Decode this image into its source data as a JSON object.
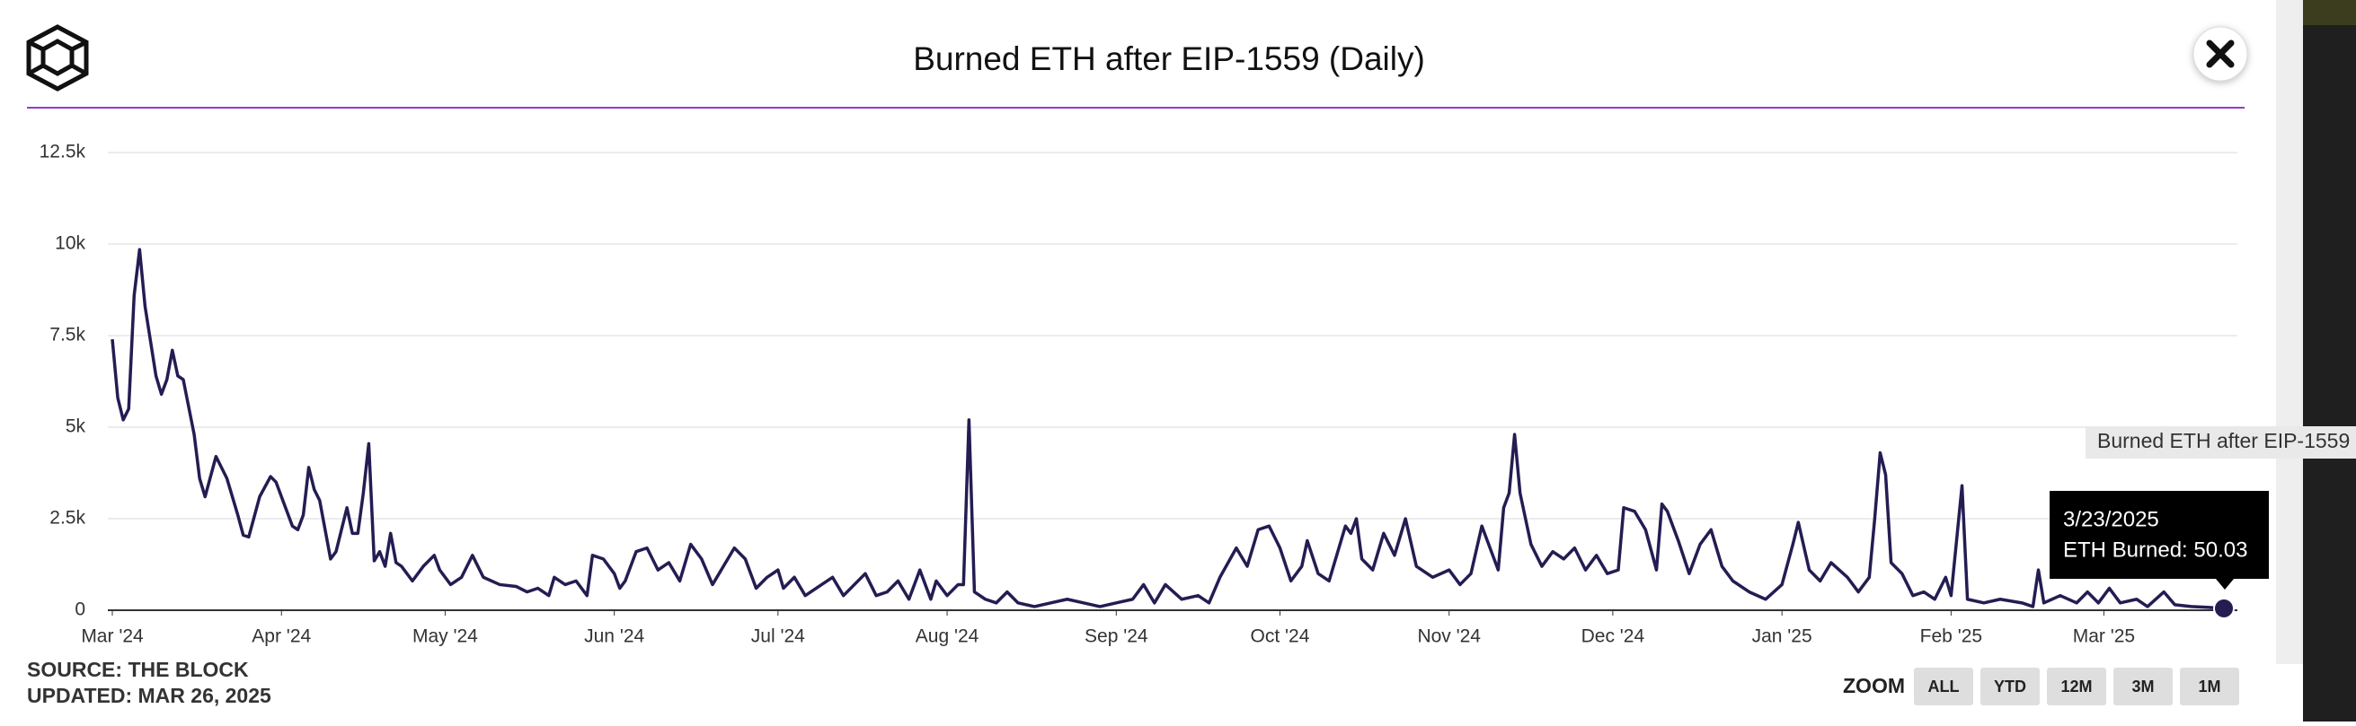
{
  "chart_data": {
    "type": "line",
    "title": "Burned ETH after EIP-1559 (Daily)",
    "series_name": "Burned ETH after EIP-1559",
    "color": "#231d52",
    "x": [
      "2024-03-01",
      "2024-03-02",
      "2024-03-03",
      "2024-03-04",
      "2024-03-05",
      "2024-03-06",
      "2024-03-07",
      "2024-03-09",
      "2024-03-10",
      "2024-03-11",
      "2024-03-12",
      "2024-03-13",
      "2024-03-14",
      "2024-03-16",
      "2024-03-17",
      "2024-03-18",
      "2024-03-20",
      "2024-03-22",
      "2024-03-24",
      "2024-03-25",
      "2024-03-26",
      "2024-03-28",
      "2024-03-30",
      "2024-03-31",
      "2024-04-02",
      "2024-04-03",
      "2024-04-04",
      "2024-04-05",
      "2024-04-06",
      "2024-04-07",
      "2024-04-08",
      "2024-04-09",
      "2024-04-10",
      "2024-04-11",
      "2024-04-13",
      "2024-04-14",
      "2024-04-15",
      "2024-04-16",
      "2024-04-17",
      "2024-04-18",
      "2024-04-19",
      "2024-04-20",
      "2024-04-21",
      "2024-04-22",
      "2024-04-23",
      "2024-04-25",
      "2024-04-27",
      "2024-04-29",
      "2024-04-30",
      "2024-05-02",
      "2024-05-04",
      "2024-05-06",
      "2024-05-08",
      "2024-05-11",
      "2024-05-14",
      "2024-05-16",
      "2024-05-18",
      "2024-05-20",
      "2024-05-21",
      "2024-05-23",
      "2024-05-25",
      "2024-05-27",
      "2024-05-28",
      "2024-05-30",
      "2024-06-01",
      "2024-06-02",
      "2024-06-03",
      "2024-06-05",
      "2024-06-07",
      "2024-06-09",
      "2024-06-11",
      "2024-06-13",
      "2024-06-15",
      "2024-06-17",
      "2024-06-19",
      "2024-06-21",
      "2024-06-23",
      "2024-06-25",
      "2024-06-27",
      "2024-06-29",
      "2024-07-01",
      "2024-07-02",
      "2024-07-04",
      "2024-07-06",
      "2024-07-09",
      "2024-07-11",
      "2024-07-13",
      "2024-07-15",
      "2024-07-17",
      "2024-07-19",
      "2024-07-21",
      "2024-07-23",
      "2024-07-25",
      "2024-07-27",
      "2024-07-29",
      "2024-07-30",
      "2024-08-01",
      "2024-08-03",
      "2024-08-04",
      "2024-08-05",
      "2024-08-06",
      "2024-08-08",
      "2024-08-10",
      "2024-08-12",
      "2024-08-14",
      "2024-08-17",
      "2024-08-20",
      "2024-08-23",
      "2024-08-26",
      "2024-08-29",
      "2024-09-01",
      "2024-09-04",
      "2024-09-06",
      "2024-09-08",
      "2024-09-10",
      "2024-09-13",
      "2024-09-16",
      "2024-09-18",
      "2024-09-20",
      "2024-09-23",
      "2024-09-25",
      "2024-09-27",
      "2024-09-29",
      "2024-10-01",
      "2024-10-03",
      "2024-10-05",
      "2024-10-06",
      "2024-10-08",
      "2024-10-10",
      "2024-10-13",
      "2024-10-14",
      "2024-10-15",
      "2024-10-16",
      "2024-10-18",
      "2024-10-20",
      "2024-10-22",
      "2024-10-24",
      "2024-10-26",
      "2024-10-29",
      "2024-11-01",
      "2024-11-03",
      "2024-11-05",
      "2024-11-07",
      "2024-11-09",
      "2024-11-10",
      "2024-11-11",
      "2024-11-12",
      "2024-11-13",
      "2024-11-14",
      "2024-11-16",
      "2024-11-18",
      "2024-11-20",
      "2024-11-22",
      "2024-11-24",
      "2024-11-26",
      "2024-11-28",
      "2024-11-30",
      "2024-12-02",
      "2024-12-03",
      "2024-12-05",
      "2024-12-07",
      "2024-12-09",
      "2024-12-10",
      "2024-12-11",
      "2024-12-13",
      "2024-12-15",
      "2024-12-17",
      "2024-12-19",
      "2024-12-21",
      "2024-12-23",
      "2024-12-26",
      "2024-12-29",
      "2025-01-01",
      "2025-01-03",
      "2025-01-04",
      "2025-01-06",
      "2025-01-08",
      "2025-01-10",
      "2025-01-13",
      "2025-01-15",
      "2025-01-17",
      "2025-01-18",
      "2025-01-19",
      "2025-01-20",
      "2025-01-21",
      "2025-01-23",
      "2025-01-25",
      "2025-01-27",
      "2025-01-29",
      "2025-01-31",
      "2025-02-01",
      "2025-02-03",
      "2025-02-04",
      "2025-02-07",
      "2025-02-10",
      "2025-02-14",
      "2025-02-16",
      "2025-02-17",
      "2025-02-18",
      "2025-02-21",
      "2025-02-24",
      "2025-02-26",
      "2025-02-28",
      "2025-03-02",
      "2025-03-04",
      "2025-03-07",
      "2025-03-09",
      "2025-03-12",
      "2025-03-14",
      "2025-03-17",
      "2025-03-20",
      "2025-03-23"
    ],
    "values": [
      7400,
      5800,
      5200,
      5500,
      8600,
      9850,
      8300,
      6400,
      5900,
      6300,
      7100,
      6400,
      6300,
      4800,
      3600,
      3100,
      4200,
      3600,
      2600,
      2050,
      2000,
      3100,
      3650,
      3500,
      2700,
      2300,
      2200,
      2600,
      3900,
      3300,
      3000,
      2200,
      1400,
      1600,
      2800,
      2100,
      2100,
      3200,
      4550,
      1350,
      1600,
      1200,
      2100,
      1300,
      1200,
      800,
      1200,
      1500,
      1100,
      700,
      900,
      1500,
      900,
      700,
      650,
      500,
      600,
      400,
      900,
      700,
      800,
      400,
      1500,
      1400,
      1000,
      600,
      800,
      1600,
      1700,
      1100,
      1300,
      800,
      1800,
      1400,
      700,
      1200,
      1700,
      1400,
      600,
      900,
      1100,
      600,
      900,
      400,
      700,
      900,
      400,
      700,
      1000,
      400,
      500,
      800,
      300,
      1100,
      300,
      800,
      400,
      700,
      700,
      5200,
      500,
      300,
      200,
      500,
      200,
      100,
      200,
      300,
      200,
      100,
      200,
      300,
      700,
      200,
      700,
      300,
      400,
      200,
      900,
      1700,
      1200,
      2200,
      2300,
      1700,
      800,
      1200,
      1900,
      1000,
      800,
      2300,
      2100,
      2500,
      1400,
      1100,
      2100,
      1500,
      2500,
      1200,
      900,
      1100,
      700,
      1000,
      2300,
      1500,
      1100,
      2800,
      3200,
      4800,
      3200,
      1800,
      1200,
      1600,
      1400,
      1700,
      1100,
      1500,
      1000,
      1100,
      2800,
      2700,
      2200,
      1100,
      2900,
      2700,
      1900,
      1000,
      1800,
      2200,
      1200,
      800,
      500,
      300,
      700,
      1800,
      2400,
      1100,
      800,
      1300,
      900,
      500,
      900,
      2500,
      4300,
      3700,
      1300,
      1000,
      400,
      500,
      300,
      900,
      400,
      3400,
      300,
      200,
      300,
      200,
      100,
      1100,
      200,
      400,
      200,
      500,
      200,
      600,
      200,
      300,
      100,
      500,
      150,
      100,
      80,
      50.03
    ],
    "xlim": [
      "2024-03-01",
      "2025-03-23"
    ],
    "xticks": [
      {
        "value": "2024-03-01",
        "label": "Mar '24"
      },
      {
        "value": "2024-04-01",
        "label": "Apr '24"
      },
      {
        "value": "2024-05-01",
        "label": "May '24"
      },
      {
        "value": "2024-06-01",
        "label": "Jun '24"
      },
      {
        "value": "2024-07-01",
        "label": "Jul '24"
      },
      {
        "value": "2024-08-01",
        "label": "Aug '24"
      },
      {
        "value": "2024-09-01",
        "label": "Sep '24"
      },
      {
        "value": "2024-10-01",
        "label": "Oct '24"
      },
      {
        "value": "2024-11-01",
        "label": "Nov '24"
      },
      {
        "value": "2024-12-01",
        "label": "Dec '24"
      },
      {
        "value": "2025-01-01",
        "label": "Jan '25"
      },
      {
        "value": "2025-02-01",
        "label": "Feb '25"
      },
      {
        "value": "2025-03-01",
        "label": "Mar '25"
      }
    ],
    "ylim": [
      0,
      12500
    ],
    "yticks": [
      0,
      {
        "value": 2500,
        "label": "2.5k"
      },
      {
        "value": 5000,
        "label": "5k"
      },
      {
        "value": 7500,
        "label": "7.5k"
      },
      {
        "value": 10000,
        "label": "10k"
      },
      {
        "value": 12500,
        "label": "12.5k"
      }
    ],
    "grid": true,
    "tooltip": {
      "title": "3/23/2025",
      "label": "ETH Burned: 50.03"
    },
    "source": "SOURCE: THE BLOCK",
    "updated": "UPDATED: MAR 26, 2025",
    "zoom_label": "ZOOM",
    "zoom_buttons": [
      "ALL",
      "YTD",
      "12M",
      "3M",
      "1M"
    ]
  }
}
